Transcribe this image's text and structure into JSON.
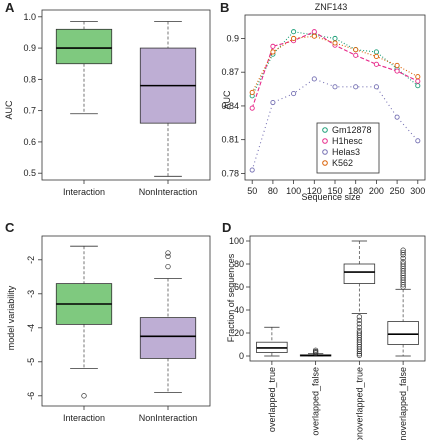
{
  "chart_data": [
    {
      "panel": "A",
      "type": "box",
      "ylabel": "AUC",
      "ylim": [
        0.5,
        1.0
      ],
      "yticks": [
        "0.5",
        "0.6",
        "0.7",
        "0.8",
        "0.9",
        "1.0"
      ],
      "boxes": [
        {
          "label": "Interaction",
          "color": "#7fc97f",
          "min": 0.69,
          "q1": 0.85,
          "median": 0.9,
          "q3": 0.96,
          "max": 0.985,
          "outliers": []
        },
        {
          "label": "NonInteraction",
          "color": "#beaed4",
          "min": 0.49,
          "q1": 0.66,
          "median": 0.78,
          "q3": 0.9,
          "max": 0.985,
          "outliers": []
        }
      ]
    },
    {
      "panel": "B",
      "type": "line",
      "title": "ZNF143",
      "xlabel": "Sequence size",
      "ylabel": "AUC",
      "categories": [
        "50",
        "80",
        "100",
        "120",
        "150",
        "180",
        "200",
        "250",
        "300"
      ],
      "ylim": [
        0.78,
        0.915
      ],
      "yticks": [
        "0.78",
        "0.81",
        "0.84",
        "0.87",
        "0.9"
      ],
      "legend_position": "bottom-right",
      "series": [
        {
          "name": "Gm12878",
          "color": "#1b9e77",
          "values": [
            0.849,
            0.886,
            0.906,
            0.903,
            0.9,
            0.89,
            0.888,
            0.873,
            0.858
          ]
        },
        {
          "name": "H1hesc",
          "color": "#e7298a",
          "values": [
            0.838,
            0.893,
            0.898,
            0.906,
            0.894,
            0.885,
            0.877,
            0.871,
            0.862
          ]
        },
        {
          "name": "Helas3",
          "color": "#7570b3",
          "values": [
            0.783,
            0.843,
            0.851,
            0.864,
            0.857,
            0.857,
            0.857,
            0.83,
            0.809
          ]
        },
        {
          "name": "K562",
          "color": "#d95f02",
          "values": [
            0.852,
            0.888,
            0.9,
            0.902,
            0.896,
            0.89,
            0.884,
            0.876,
            0.866
          ]
        }
      ]
    },
    {
      "panel": "C",
      "type": "box",
      "ylabel": "model variability",
      "ylim": [
        -6.1,
        -1.5
      ],
      "yticks": [
        "-6",
        "-5",
        "-4",
        "-3",
        "-2"
      ],
      "boxes": [
        {
          "label": "Interaction",
          "color": "#7fc97f",
          "min": -5.2,
          "q1": -3.9,
          "median": -3.3,
          "q3": -2.7,
          "max": -1.6,
          "outliers": [
            -6.0
          ]
        },
        {
          "label": "NonInteraction",
          "color": "#beaed4",
          "min": -5.9,
          "q1": -4.9,
          "median": -4.25,
          "q3": -3.7,
          "max": -2.55,
          "outliers": [
            -2.2,
            -1.9,
            -1.8
          ]
        }
      ]
    },
    {
      "panel": "D",
      "type": "box",
      "ylabel": "Fraction of sequences",
      "ylim": [
        0,
        100
      ],
      "yticks": [
        "0",
        "20",
        "40",
        "60",
        "80",
        "100"
      ],
      "boxes": [
        {
          "label": "overlapped_true",
          "color": "#ffffff",
          "min": 0,
          "q1": 3,
          "median": 7,
          "q3": 12,
          "max": 25,
          "outliers": []
        },
        {
          "label": "overlapped_false",
          "color": "#ffffff",
          "min": 0,
          "q1": 0,
          "median": 0.5,
          "q3": 1,
          "max": 2,
          "outliers": [
            2.5,
            3.2,
            4,
            5
          ]
        },
        {
          "label": "nonoverlapped_true",
          "color": "#ffffff",
          "min": 37,
          "q1": 63,
          "median": 73,
          "q3": 80,
          "max": 100,
          "outliers": [
            0.5,
            2,
            4,
            6,
            8,
            10,
            12,
            14,
            16,
            18,
            20,
            22,
            25,
            28,
            31,
            34
          ]
        },
        {
          "label": "nonoverlapped_false",
          "color": "#ffffff",
          "min": 0,
          "q1": 10,
          "median": 19,
          "q3": 30,
          "max": 58,
          "outliers": [
            60,
            62,
            64,
            66,
            68,
            70,
            72,
            74,
            76,
            78,
            80,
            82,
            85,
            88,
            90,
            92
          ]
        }
      ]
    }
  ]
}
